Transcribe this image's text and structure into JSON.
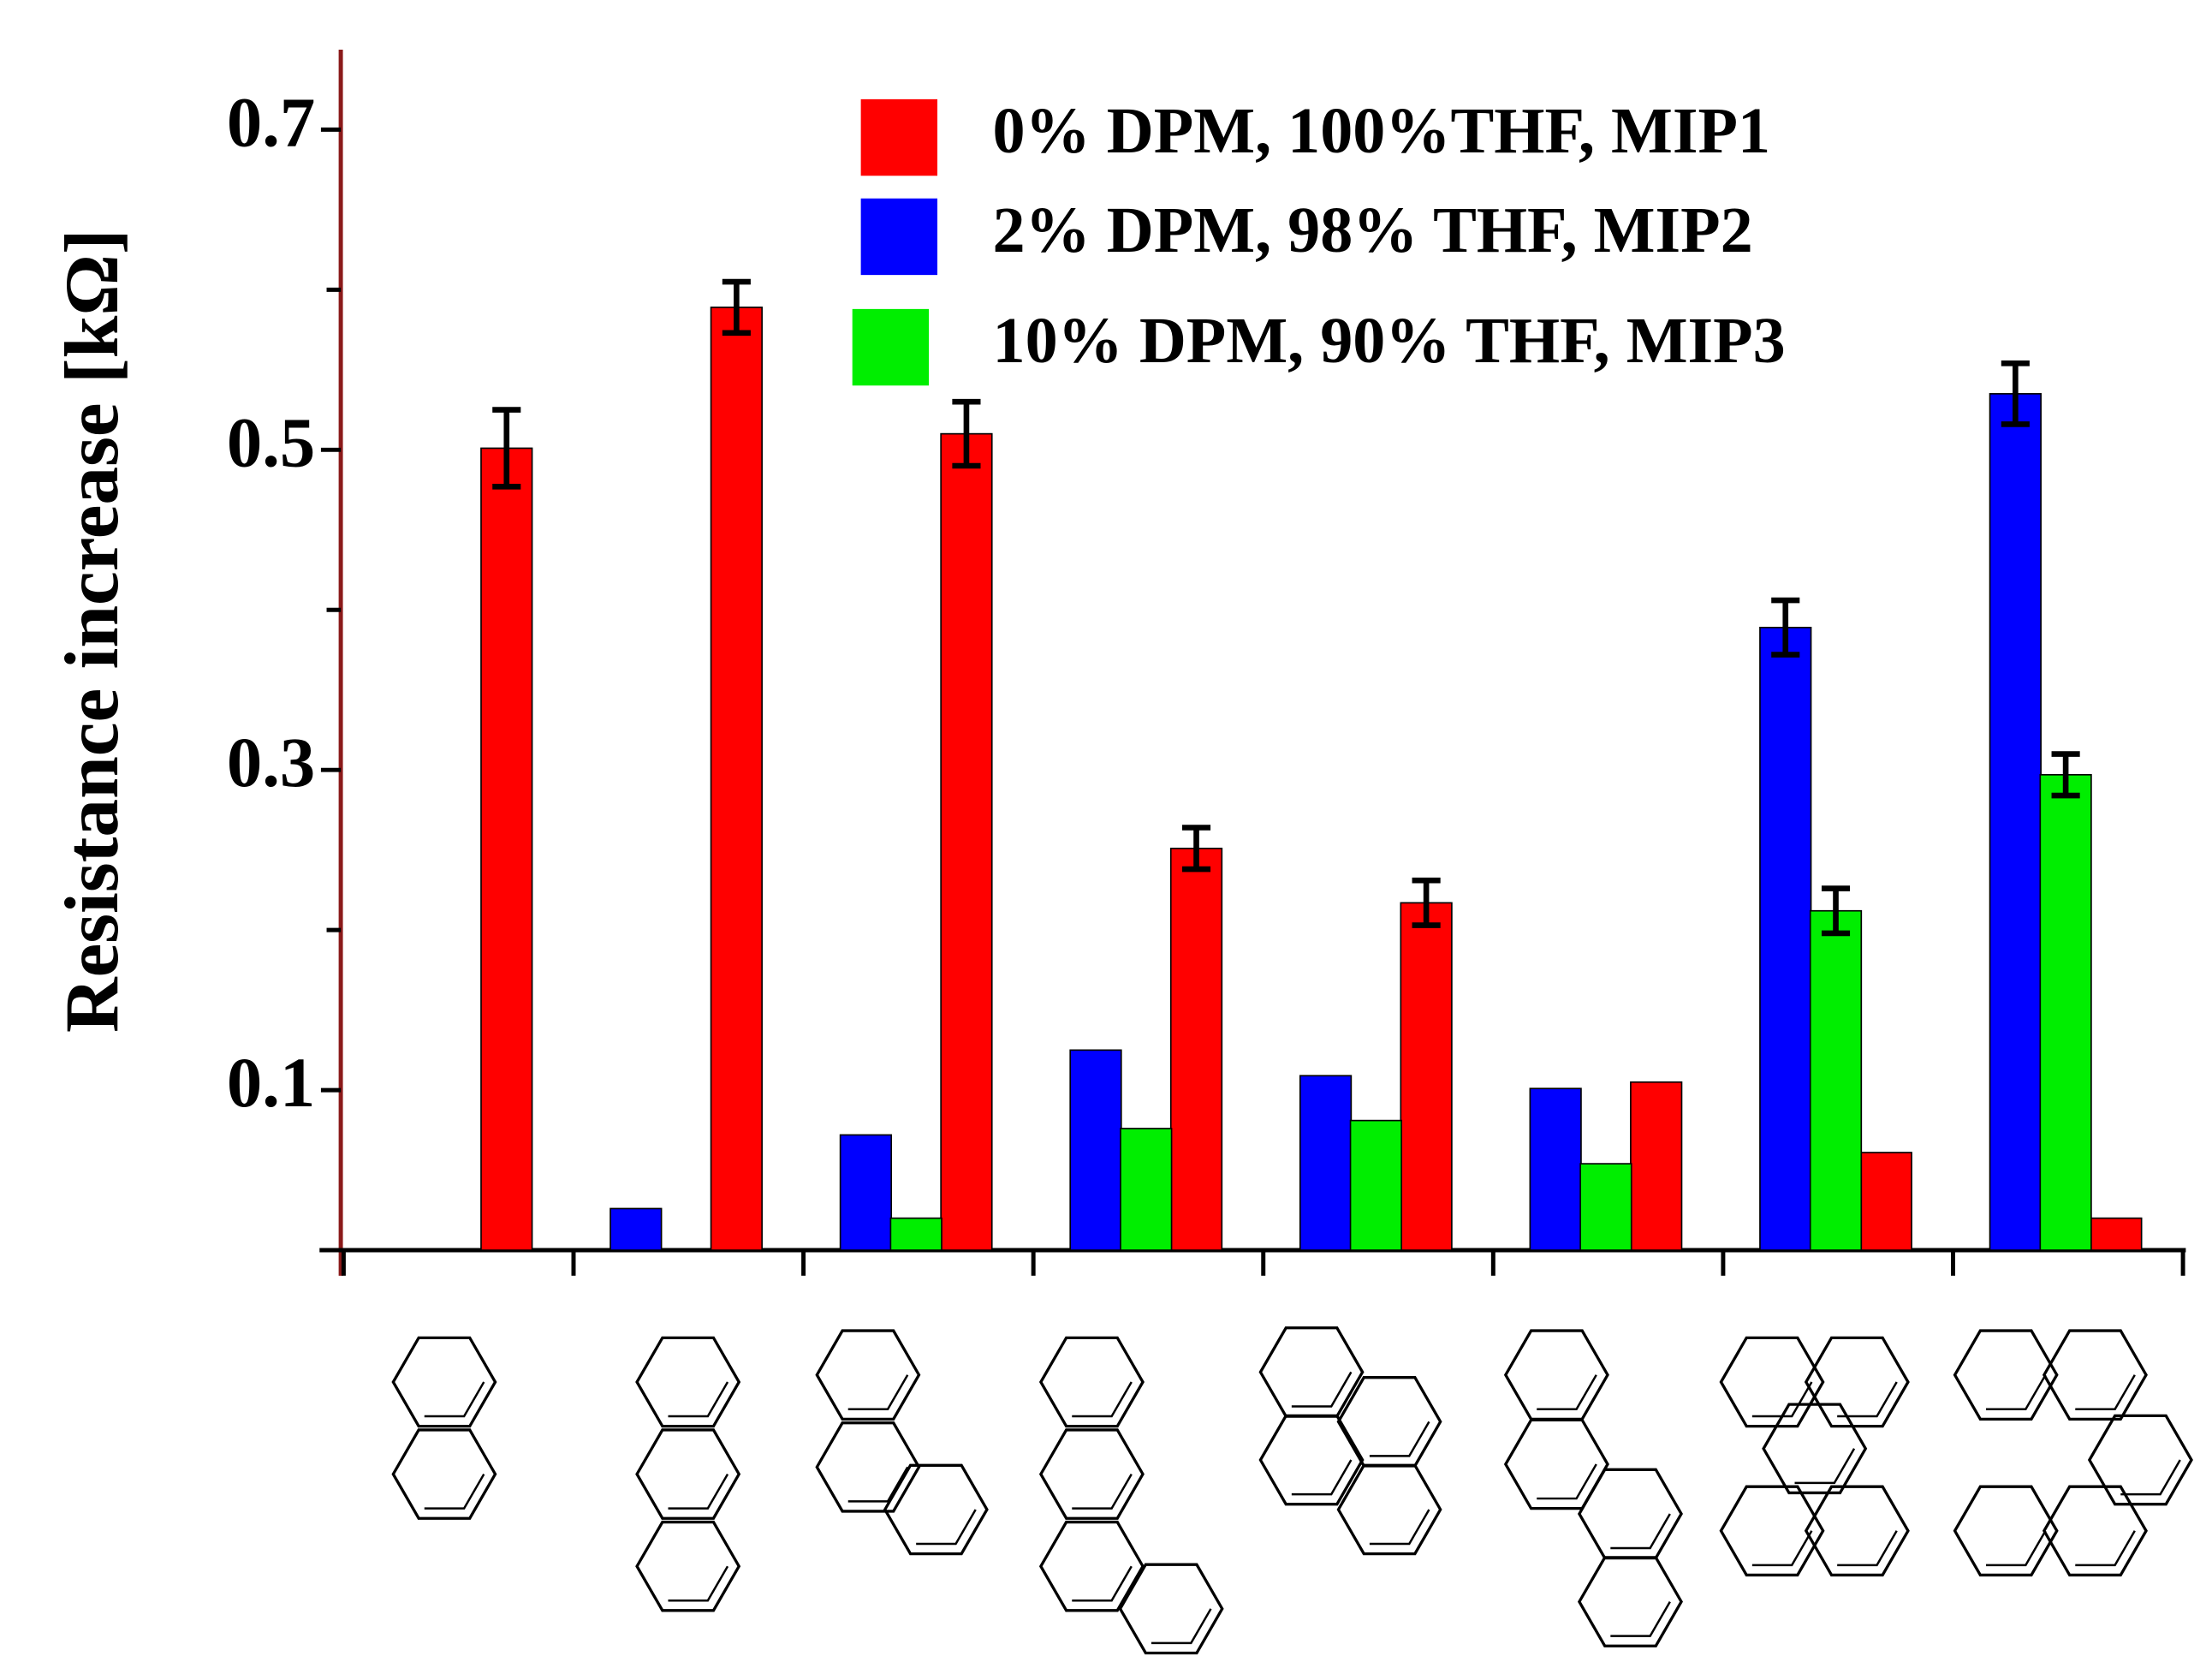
{
  "chart_data": {
    "type": "bar",
    "y_label": "Resistance increase [kΩ]",
    "categories": [
      null,
      null,
      null,
      null,
      null,
      null,
      null,
      null
    ],
    "series": [
      {
        "name": "0%  DPM, 100%THF, MIP1",
        "color": "#ff0000",
        "values": [
          0.501,
          0.589,
          0.51,
          0.251,
          0.217,
          0.105,
          0.061,
          0.02
        ],
        "errors": [
          0.024,
          0.016,
          0.02,
          0.013,
          0.014,
          null,
          null,
          null
        ]
      },
      {
        "name": "2%  DPM, 98% THF, MIP2",
        "color": "#0000ff",
        "values": [
          0,
          0.026,
          0.072,
          0.125,
          0.109,
          0.101,
          0.389,
          0.535
        ],
        "errors": [
          null,
          null,
          null,
          null,
          null,
          null,
          0.017,
          0.019
        ]
      },
      {
        "name": "10% DPM, 90% THF, MIP3",
        "color": "#00ee00",
        "values": [
          0,
          0,
          0.02,
          0.076,
          0.081,
          0.054,
          0.212,
          0.297
        ],
        "errors": [
          null,
          null,
          null,
          null,
          null,
          null,
          0.014,
          0.013
        ]
      }
    ],
    "ylim": [
      0,
      0.75
    ],
    "yticks": [
      0.1,
      0.3,
      0.5,
      0.7
    ],
    "minor_yticks": [
      0.2,
      0.4,
      0.6
    ]
  }
}
